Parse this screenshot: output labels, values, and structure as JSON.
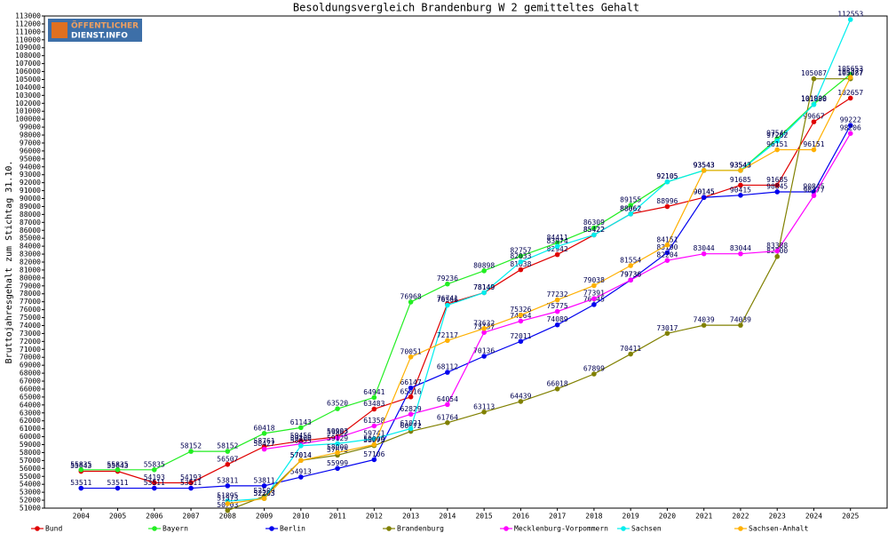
{
  "logo": {
    "line1": "ÖFFENTLICHER",
    "line2": "DIENST.INFO"
  },
  "chart_data": {
    "type": "line",
    "title": "Besoldungsvergleich Brandenburg W 2 gemitteltes Gehalt",
    "y_label": "Bruttojahresgehalt zum Stichtag 31.10.",
    "x": [
      2004,
      2005,
      2006,
      2007,
      2008,
      2009,
      2010,
      2011,
      2012,
      2013,
      2014,
      2015,
      2016,
      2017,
      2018,
      2019,
      2020,
      2021,
      2022,
      2023,
      2024,
      2025
    ],
    "xlim": [
      2003,
      2026
    ],
    "xticks": [
      2004,
      2005,
      2006,
      2007,
      2008,
      2009,
      2010,
      2011,
      2012,
      2013,
      2014,
      2015,
      2016,
      2017,
      2018,
      2019,
      2020,
      2021,
      2022,
      2023,
      2024,
      2025
    ],
    "ylim": [
      51000,
      113000
    ],
    "yticks": [
      51000,
      52000,
      53000,
      54000,
      55000,
      56000,
      57000,
      58000,
      59000,
      60000,
      61000,
      62000,
      63000,
      64000,
      65000,
      66000,
      67000,
      68000,
      69000,
      70000,
      71000,
      72000,
      73000,
      74000,
      75000,
      76000,
      77000,
      78000,
      79000,
      80000,
      81000,
      82000,
      83000,
      84000,
      85000,
      86000,
      87000,
      88000,
      89000,
      90000,
      91000,
      92000,
      93000,
      94000,
      95000,
      96000,
      97000,
      98000,
      99000,
      100000,
      101000,
      102000,
      103000,
      104000,
      105000,
      106000,
      107000,
      108000,
      109000,
      110000,
      111000,
      112000,
      113000
    ],
    "series": [
      {
        "name": "Bund",
        "color": "#e00000",
        "values": [
          55643,
          55643,
          54193,
          54193,
          56507,
          58761,
          59456,
          59993,
          63483,
          65016,
          76741,
          78149,
          81038,
          82942,
          85422,
          88062,
          88996,
          90145,
          91685,
          91685,
          99667,
          102657
        ]
      },
      {
        "name": "Bayern",
        "color": "#22ee22",
        "values": [
          55835,
          55835,
          55835,
          58152,
          58152,
          60418,
          61143,
          63520,
          64941,
          76968,
          79236,
          80898,
          82757,
          84411,
          86309,
          89155,
          92105,
          93543,
          93543,
          97540,
          101900,
          105653
        ]
      },
      {
        "name": "Berlin",
        "color": "#0000ee",
        "values": [
          53511,
          53511,
          53511,
          53511,
          53811,
          53811,
          54913,
          55999,
          57106,
          66147,
          68112,
          70136,
          72011,
          74089,
          76645,
          79736,
          83190,
          90145,
          90415,
          90845,
          90845,
          99222
        ]
      },
      {
        "name": "Brandenburg",
        "color": "#808000",
        "values": [
          null,
          null,
          null,
          null,
          50703,
          52500,
          57014,
          57675,
          58875,
          60672,
          61764,
          63113,
          64439,
          66018,
          67899,
          70411,
          73017,
          74039,
          74039,
          82700,
          105087,
          105087
        ]
      },
      {
        "name": "Mecklenburg-Vorpommern",
        "color": "#ff00ff",
        "values": [
          null,
          null,
          null,
          null,
          null,
          58427,
          59100,
          59862,
          61358,
          62829,
          64054,
          73137,
          74564,
          75775,
          77391,
          79736,
          82204,
          83044,
          83044,
          83388,
          90377,
          98206
        ]
      },
      {
        "name": "Sachsen",
        "color": "#00eeee",
        "values": [
          null,
          null,
          null,
          null,
          51895,
          52203,
          58855,
          59129,
          59741,
          61021,
          76566,
          78149,
          82033,
          83974,
          85422,
          88062,
          92105,
          93543,
          93543,
          97262,
          101838,
          112553
        ]
      },
      {
        "name": "Sachsen-Anhalt",
        "color": "#ffb000",
        "values": [
          null,
          null,
          null,
          null,
          51573,
          52203,
          57014,
          58000,
          59000,
          70051,
          72117,
          73632,
          75326,
          77232,
          79038,
          81554,
          84151,
          93543,
          93543,
          96151,
          96151,
          105277
        ]
      }
    ]
  }
}
